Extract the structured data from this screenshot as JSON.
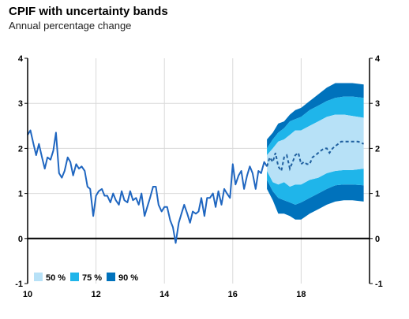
{
  "title": "CPIF with uncertainty bands",
  "subtitle": "Annual percentage change",
  "colors": {
    "history": "#1f66c0",
    "forecast": "#1f5f9f",
    "band50": "#b7e1f7",
    "band75": "#1fb5ea",
    "band90": "#0072bc",
    "grid": "#d9d9d9",
    "zero": "#000000"
  },
  "chart_data": {
    "type": "line",
    "title": "CPIF with uncertainty bands",
    "subtitle": "Annual percentage change",
    "xlim": [
      10,
      20
    ],
    "ylim": [
      -1,
      4
    ],
    "x_ticks": [
      "10",
      "12",
      "14",
      "16",
      "18"
    ],
    "x_tick_values": [
      10,
      12,
      14,
      16,
      18
    ],
    "y_ticks_left": [
      "-1",
      "0",
      "1",
      "2",
      "3",
      "4"
    ],
    "y_ticks_right": [
      "-1",
      "0",
      "1",
      "2",
      "3",
      "4"
    ],
    "y_tick_values": [
      -1,
      0,
      1,
      2,
      3,
      4
    ],
    "grid": true,
    "legend_position": "bottom-left",
    "legend": [
      {
        "label": "50 %",
        "color_key": "band50"
      },
      {
        "label": "75 %",
        "color_key": "band75"
      },
      {
        "label": "90 %",
        "color_key": "band90"
      }
    ],
    "history": {
      "x": [
        10.0,
        10.08,
        10.17,
        10.25,
        10.33,
        10.42,
        10.5,
        10.58,
        10.67,
        10.75,
        10.83,
        10.92,
        11.0,
        11.08,
        11.17,
        11.25,
        11.33,
        11.42,
        11.5,
        11.58,
        11.67,
        11.75,
        11.83,
        11.92,
        12.0,
        12.08,
        12.17,
        12.25,
        12.33,
        12.42,
        12.5,
        12.58,
        12.67,
        12.75,
        12.83,
        12.92,
        13.0,
        13.08,
        13.17,
        13.25,
        13.33,
        13.42,
        13.5,
        13.58,
        13.67,
        13.75,
        13.83,
        13.92,
        14.0,
        14.08,
        14.17,
        14.25,
        14.33,
        14.42,
        14.5,
        14.58,
        14.67,
        14.75,
        14.83,
        14.92,
        15.0,
        15.08,
        15.17,
        15.25,
        15.33,
        15.42,
        15.5,
        15.58,
        15.67,
        15.75,
        15.83,
        15.92,
        16.0,
        16.08,
        16.17,
        16.25,
        16.33,
        16.42,
        16.5,
        16.58,
        16.67,
        16.75,
        16.83,
        16.92,
        17.0
      ],
      "values": [
        2.3,
        2.4,
        2.1,
        1.85,
        2.1,
        1.8,
        1.55,
        1.8,
        1.75,
        1.95,
        2.35,
        1.45,
        1.35,
        1.5,
        1.8,
        1.7,
        1.4,
        1.65,
        1.55,
        1.6,
        1.5,
        1.15,
        1.1,
        0.5,
        0.95,
        1.05,
        1.1,
        0.95,
        0.95,
        0.8,
        1.0,
        0.85,
        0.75,
        1.05,
        0.85,
        0.8,
        1.05,
        0.85,
        0.9,
        0.75,
        1.0,
        0.5,
        0.7,
        0.9,
        1.15,
        1.15,
        0.75,
        0.6,
        0.7,
        0.7,
        0.4,
        0.25,
        -0.1,
        0.35,
        0.55,
        0.75,
        0.55,
        0.35,
        0.6,
        0.55,
        0.6,
        0.9,
        0.5,
        0.9,
        0.9,
        1.0,
        0.7,
        1.05,
        0.75,
        1.1,
        1.0,
        0.9,
        1.65,
        1.2,
        1.4,
        1.5,
        1.1,
        1.4,
        1.6,
        1.45,
        1.1,
        1.5,
        1.45,
        1.7,
        1.6
      ]
    },
    "forecast": {
      "x": [
        17.0,
        17.08,
        17.17,
        17.25,
        17.33,
        17.42,
        17.5,
        17.58,
        17.67,
        17.75,
        17.83,
        17.92,
        18.0,
        18.08,
        18.17,
        18.25,
        18.33,
        18.42,
        18.5,
        18.58,
        18.67,
        18.75,
        18.83,
        18.92,
        19.0,
        19.17,
        19.33,
        19.5,
        19.67,
        19.83
      ],
      "values": [
        1.6,
        1.8,
        1.7,
        1.9,
        1.6,
        1.5,
        1.8,
        1.85,
        1.55,
        1.7,
        1.85,
        1.9,
        1.65,
        1.7,
        1.65,
        1.65,
        1.8,
        1.85,
        1.9,
        1.95,
        2.0,
        2.0,
        1.9,
        2.0,
        2.05,
        2.15,
        2.15,
        2.15,
        2.15,
        2.1
      ]
    },
    "bands": {
      "x": [
        17.0,
        17.17,
        17.33,
        17.5,
        17.67,
        17.83,
        18.0,
        18.25,
        18.5,
        18.75,
        19.0,
        19.25,
        19.5,
        19.83
      ],
      "upper90": [
        2.2,
        2.35,
        2.55,
        2.6,
        2.75,
        2.85,
        2.9,
        3.05,
        3.2,
        3.35,
        3.45,
        3.45,
        3.45,
        3.42
      ],
      "upper75": [
        2.0,
        2.2,
        2.35,
        2.45,
        2.6,
        2.65,
        2.7,
        2.85,
        2.95,
        3.05,
        3.12,
        3.15,
        3.15,
        3.12
      ],
      "upper50": [
        1.85,
        2.0,
        2.15,
        2.2,
        2.3,
        2.4,
        2.4,
        2.5,
        2.6,
        2.7,
        2.75,
        2.75,
        2.72,
        2.68
      ],
      "lower50": [
        1.5,
        1.25,
        1.2,
        1.25,
        1.15,
        1.2,
        1.2,
        1.3,
        1.35,
        1.45,
        1.5,
        1.52,
        1.52,
        1.55
      ],
      "lower75": [
        1.3,
        1.05,
        0.9,
        0.85,
        0.8,
        0.75,
        0.8,
        0.9,
        1.0,
        1.1,
        1.18,
        1.2,
        1.2,
        1.18
      ],
      "lower90": [
        1.1,
        0.85,
        0.55,
        0.55,
        0.5,
        0.42,
        0.42,
        0.55,
        0.65,
        0.75,
        0.82,
        0.85,
        0.85,
        0.82
      ]
    }
  }
}
